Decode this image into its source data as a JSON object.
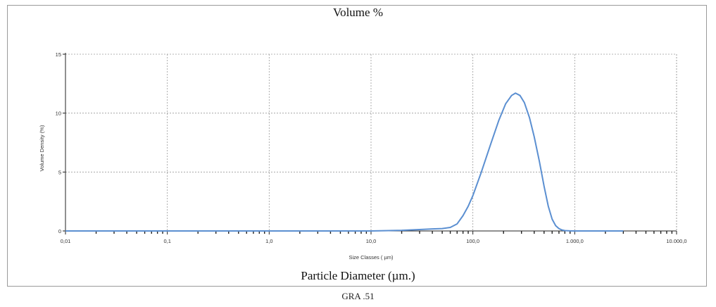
{
  "page": {
    "footer": "GRA .51"
  },
  "chart_data": {
    "type": "line",
    "title": "Volume %",
    "caption": "Particle Diameter (µm.)",
    "xlabel": "Size Classes ( µm)",
    "ylabel": "Volume Density (%)",
    "xscale": "log",
    "xlim": [
      0.01,
      10000
    ],
    "ylim": [
      0,
      15
    ],
    "grid": true,
    "x_ticks": [
      {
        "value": 0.01,
        "label": "0,01"
      },
      {
        "value": 0.1,
        "label": "0,1"
      },
      {
        "value": 1,
        "label": "1,0"
      },
      {
        "value": 10,
        "label": "10,0"
      },
      {
        "value": 100,
        "label": "100,0"
      },
      {
        "value": 1000,
        "label": "1.000,0"
      },
      {
        "value": 10000,
        "label": "10.000,0"
      }
    ],
    "y_ticks": [
      {
        "value": 0,
        "label": "0"
      },
      {
        "value": 5,
        "label": "5"
      },
      {
        "value": 10,
        "label": "10"
      },
      {
        "value": 15,
        "label": "15"
      }
    ],
    "series": [
      {
        "color": "#5b8fd1",
        "x": [
          0.01,
          0.1,
          1,
          10,
          20,
          30,
          40,
          50,
          60,
          70,
          80,
          90,
          100,
          120,
          150,
          180,
          210,
          240,
          262,
          290,
          320,
          360,
          400,
          450,
          500,
          550,
          600,
          650,
          700,
          750,
          800,
          900,
          1000,
          2000,
          3000
        ],
        "y": [
          0,
          0,
          0,
          0,
          0.05,
          0.12,
          0.17,
          0.2,
          0.3,
          0.6,
          1.3,
          2.1,
          3.0,
          4.9,
          7.4,
          9.4,
          10.8,
          11.5,
          11.7,
          11.5,
          10.9,
          9.6,
          8.0,
          5.9,
          3.8,
          2.1,
          1.0,
          0.45,
          0.2,
          0.08,
          0.03,
          0.01,
          0,
          0,
          0
        ]
      }
    ]
  }
}
